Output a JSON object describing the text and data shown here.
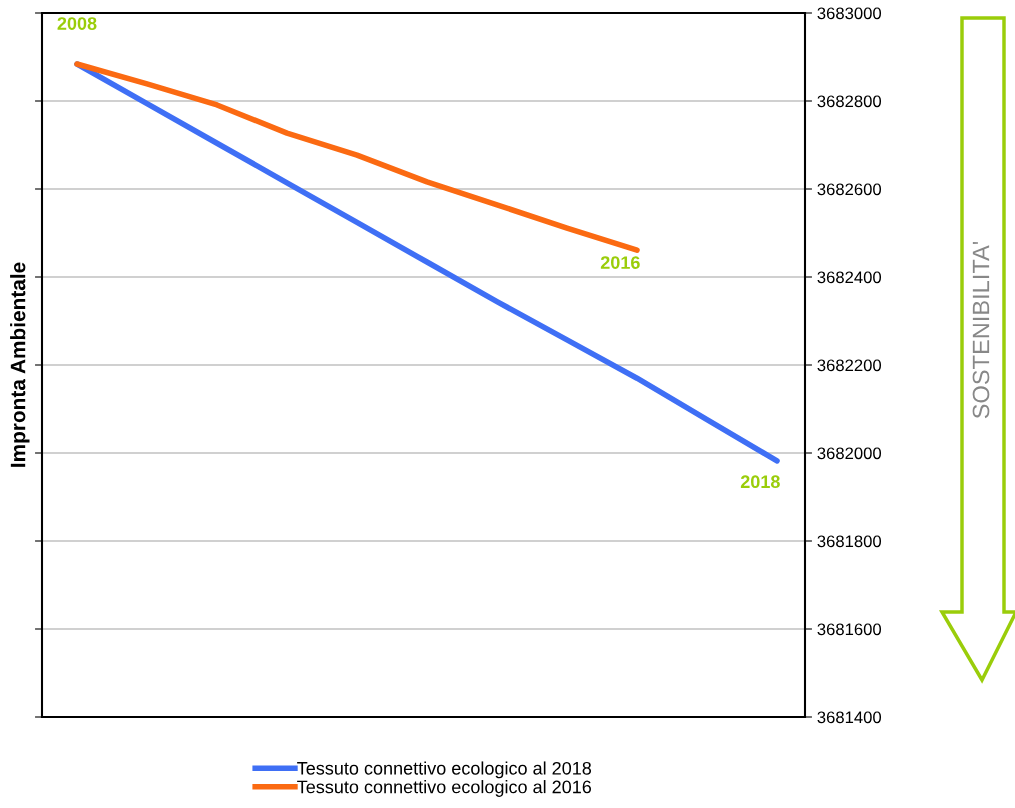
{
  "chart_data": {
    "type": "line",
    "ylabel": "Impronta Ambientale",
    "categories": [
      null,
      null,
      null,
      null,
      null,
      null,
      null,
      null,
      null,
      null,
      null
    ],
    "series": [
      {
        "name": "Tessuto connettivo ecologico al 2018",
        "color": "#3f6ff5",
        "values": [
          3682884,
          3682794,
          3682704,
          3682614,
          3682524,
          3682434,
          3682344,
          3682257,
          3682170,
          3682076,
          3681982
        ]
      },
      {
        "name": "Tessuto connettivo ecologico al 2016",
        "color": "#fb6a12",
        "values": [
          3682884,
          3682839,
          3682791,
          3682727,
          3682677,
          3682616,
          3682564,
          3682511,
          3682461,
          null,
          null
        ]
      }
    ],
    "ylim": [
      3681400,
      3683000
    ],
    "yticks": [
      3681400,
      3681600,
      3681800,
      3682000,
      3682200,
      3682400,
      3682600,
      3682800,
      3683000
    ],
    "tick_labels": "y",
    "grid": "y",
    "legend": "bottom",
    "marker": "none",
    "line_style": "solid",
    "annotations": [
      {
        "text": "2008",
        "y": 3682884
      },
      {
        "text": "2016",
        "y": 3682461
      },
      "2018",
      "SOSTENIBILITA'"
    ]
  }
}
